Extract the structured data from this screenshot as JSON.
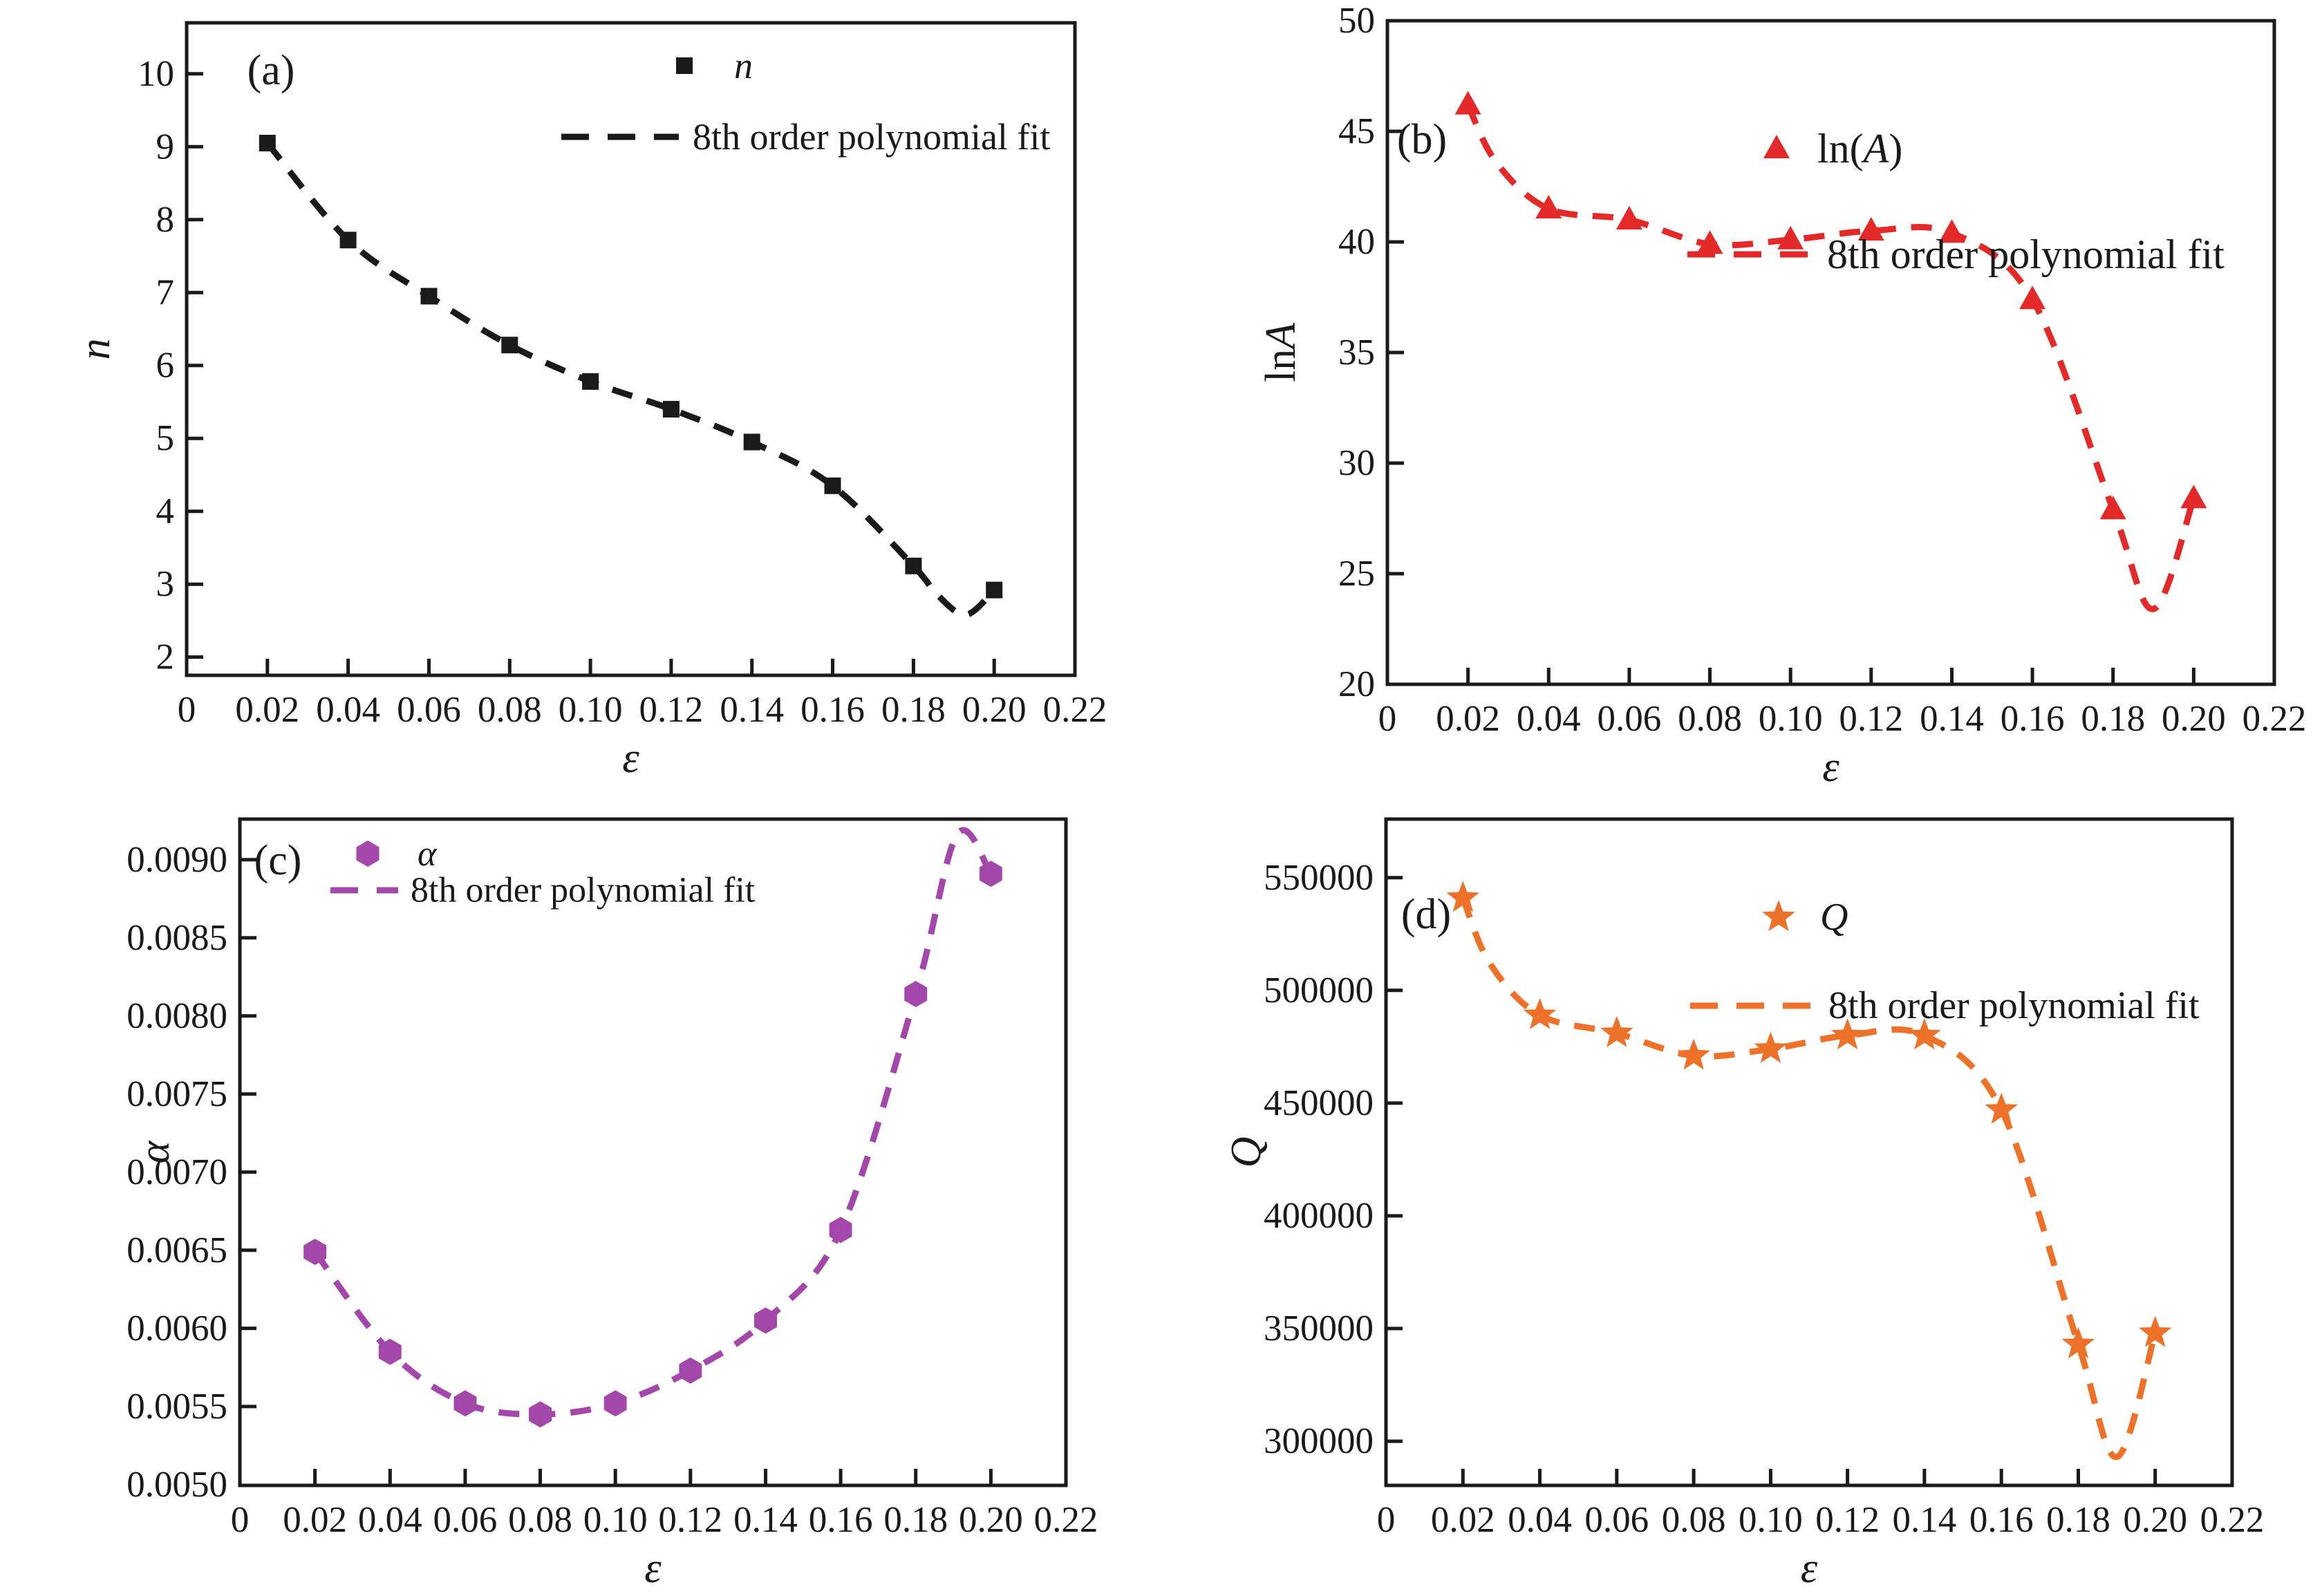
{
  "figure": {
    "background": "#ffffff",
    "axis_color": "#1a1a1a",
    "description": "Four-panel scatter figure: material constants n, ln(A), alpha, Q versus strain with 8th order polynomial fits"
  },
  "chart_data": [
    {
      "type": "scatter",
      "panel_tag": "(a)",
      "marker": {
        "shape": "square",
        "color": "#1a1a1a"
      },
      "series_label": {
        "pre": "",
        "var": "n",
        "suf": ""
      },
      "fit_label": "8th order polynomial fit",
      "xlabel": "ε",
      "ylabel": {
        "pre": "",
        "var": "n"
      },
      "x": [
        0.02,
        0.04,
        0.06,
        0.08,
        0.1,
        0.12,
        0.14,
        0.16,
        0.18,
        0.2
      ],
      "y": [
        9.05,
        7.72,
        6.95,
        6.28,
        5.78,
        5.4,
        4.95,
        4.35,
        3.25,
        2.92
      ],
      "fit_curve": [
        [
          0.02,
          9.05
        ],
        [
          0.04,
          7.72
        ],
        [
          0.06,
          6.95
        ],
        [
          0.08,
          6.28
        ],
        [
          0.1,
          5.78
        ],
        [
          0.12,
          5.4
        ],
        [
          0.14,
          4.95
        ],
        [
          0.16,
          4.35
        ],
        [
          0.18,
          3.25
        ],
        [
          0.186,
          2.85
        ],
        [
          0.193,
          2.58
        ],
        [
          0.2,
          2.92
        ]
      ],
      "xlim": [
        0,
        0.22
      ],
      "ylim": [
        1.75,
        10.7
      ],
      "grid": false,
      "legend_position": "upper center inside",
      "xticks": {
        "values": [
          0,
          0.02,
          0.04,
          0.06,
          0.08,
          0.1,
          0.12,
          0.14,
          0.16,
          0.18,
          0.2,
          0.22
        ],
        "labels": [
          "0",
          "0.02",
          "0.04",
          "0.06",
          "0.08",
          "0.10",
          "0.12",
          "0.14",
          "0.16",
          "0.18",
          "0.20",
          "0.22"
        ]
      },
      "yticks": {
        "values": [
          2,
          3,
          4,
          5,
          6,
          7,
          8,
          9,
          10
        ],
        "labels": [
          "2",
          "3",
          "4",
          "5",
          "6",
          "7",
          "8",
          "9",
          "10"
        ]
      }
    },
    {
      "type": "scatter",
      "panel_tag": "(b)",
      "marker": {
        "shape": "triangle",
        "color": "#e42a28"
      },
      "series_label": {
        "pre": "ln(",
        "var": "A",
        "suf": ")"
      },
      "fit_label": "8th order polynomial fit",
      "xlabel": "ε",
      "ylabel": {
        "pre": "ln",
        "var": "A"
      },
      "x": [
        0.02,
        0.04,
        0.06,
        0.08,
        0.1,
        0.12,
        0.14,
        0.16,
        0.18,
        0.2
      ],
      "y": [
        46.2,
        41.5,
        41.0,
        39.9,
        40.1,
        40.5,
        40.4,
        37.4,
        27.9,
        28.4
      ],
      "fit_curve": [
        [
          0.02,
          46.2
        ],
        [
          0.027,
          43.6
        ],
        [
          0.04,
          41.5
        ],
        [
          0.06,
          41.0
        ],
        [
          0.08,
          39.9
        ],
        [
          0.1,
          40.1
        ],
        [
          0.12,
          40.5
        ],
        [
          0.14,
          40.4
        ],
        [
          0.16,
          37.4
        ],
        [
          0.18,
          27.9
        ],
        [
          0.19,
          23.4
        ],
        [
          0.2,
          28.4
        ]
      ],
      "xlim": [
        0,
        0.22
      ],
      "ylim": [
        20,
        50
      ],
      "grid": false,
      "legend_position": "upper center inside",
      "xticks": {
        "values": [
          0,
          0.02,
          0.04,
          0.06,
          0.08,
          0.1,
          0.12,
          0.14,
          0.16,
          0.18,
          0.2,
          0.22
        ],
        "labels": [
          "0",
          "0.02",
          "0.04",
          "0.06",
          "0.08",
          "0.10",
          "0.12",
          "0.14",
          "0.16",
          "0.18",
          "0.20",
          "0.22"
        ]
      },
      "yticks": {
        "values": [
          20,
          25,
          30,
          35,
          40,
          45,
          50
        ],
        "labels": [
          "20",
          "25",
          "30",
          "35",
          "40",
          "45",
          "50"
        ]
      }
    },
    {
      "type": "scatter",
      "panel_tag": "(c)",
      "marker": {
        "shape": "hexagon",
        "color": "#a348aa"
      },
      "series_label": {
        "pre": "",
        "var": "α",
        "suf": ""
      },
      "fit_label": "8th order polynomial fit",
      "xlabel": "ε",
      "ylabel": {
        "pre": "",
        "var": "α"
      },
      "x": [
        0.02,
        0.04,
        0.06,
        0.08,
        0.1,
        0.12,
        0.14,
        0.16,
        0.18,
        0.2
      ],
      "y": [
        0.00649,
        0.00585,
        0.00552,
        0.00545,
        0.00552,
        0.00573,
        0.00605,
        0.00663,
        0.00814,
        0.00891
      ],
      "fit_curve": [
        [
          0.02,
          0.00649
        ],
        [
          0.04,
          0.00585
        ],
        [
          0.06,
          0.00552
        ],
        [
          0.08,
          0.00545
        ],
        [
          0.1,
          0.00552
        ],
        [
          0.12,
          0.00573
        ],
        [
          0.14,
          0.00605
        ],
        [
          0.16,
          0.00663
        ],
        [
          0.18,
          0.00814
        ],
        [
          0.191,
          0.00916
        ],
        [
          0.2,
          0.00891
        ]
      ],
      "xlim": [
        0,
        0.22
      ],
      "ylim": [
        0.004995,
        0.00926
      ],
      "grid": false,
      "legend_position": "upper left inside",
      "xticks": {
        "values": [
          0,
          0.02,
          0.04,
          0.06,
          0.08,
          0.1,
          0.12,
          0.14,
          0.16,
          0.18,
          0.2,
          0.22
        ],
        "labels": [
          "0",
          "0.02",
          "0.04",
          "0.06",
          "0.08",
          "0.10",
          "0.12",
          "0.14",
          "0.16",
          "0.18",
          "0.20",
          "0.22"
        ]
      },
      "yticks": {
        "values": [
          0.005,
          0.0055,
          0.006,
          0.0065,
          0.007,
          0.0075,
          0.008,
          0.0085,
          0.009
        ],
        "labels": [
          "0.0050",
          "0.0055",
          "0.0060",
          "0.0065",
          "0.0070",
          "0.0075",
          "0.0080",
          "0.0085",
          "0.0090"
        ]
      }
    },
    {
      "type": "scatter",
      "panel_tag": "(d)",
      "marker": {
        "shape": "star",
        "color": "#ed7128"
      },
      "series_label": {
        "pre": "",
        "var": "Q",
        "suf": ""
      },
      "fit_label": "8th order polynomial fit",
      "xlabel": "ε",
      "ylabel": {
        "pre": "",
        "var": "Q"
      },
      "x": [
        0.02,
        0.04,
        0.06,
        0.08,
        0.1,
        0.12,
        0.14,
        0.16,
        0.18,
        0.2
      ],
      "y": [
        541000,
        489000,
        481000,
        471000,
        474000,
        480000,
        480000,
        447000,
        343000,
        348000
      ],
      "fit_curve": [
        [
          0.02,
          541000
        ],
        [
          0.027,
          512000
        ],
        [
          0.04,
          489000
        ],
        [
          0.06,
          481000
        ],
        [
          0.08,
          471000
        ],
        [
          0.1,
          474000
        ],
        [
          0.12,
          480000
        ],
        [
          0.14,
          480000
        ],
        [
          0.16,
          447000
        ],
        [
          0.18,
          343000
        ],
        [
          0.19,
          293000
        ],
        [
          0.2,
          348000
        ]
      ],
      "xlim": [
        0,
        0.22
      ],
      "ylim": [
        280400,
        576000
      ],
      "grid": false,
      "legend_position": "upper center inside",
      "xticks": {
        "values": [
          0,
          0.02,
          0.04,
          0.06,
          0.08,
          0.1,
          0.12,
          0.14,
          0.16,
          0.18,
          0.2,
          0.22
        ],
        "labels": [
          "0",
          "0.02",
          "0.04",
          "0.06",
          "0.08",
          "0.10",
          "0.12",
          "0.14",
          "0.16",
          "0.18",
          "0.20",
          "0.22"
        ]
      },
      "yticks": {
        "values": [
          300000,
          350000,
          400000,
          450000,
          500000,
          550000
        ],
        "labels": [
          "300000",
          "350000",
          "400000",
          "450000",
          "500000",
          "550000"
        ]
      }
    }
  ]
}
